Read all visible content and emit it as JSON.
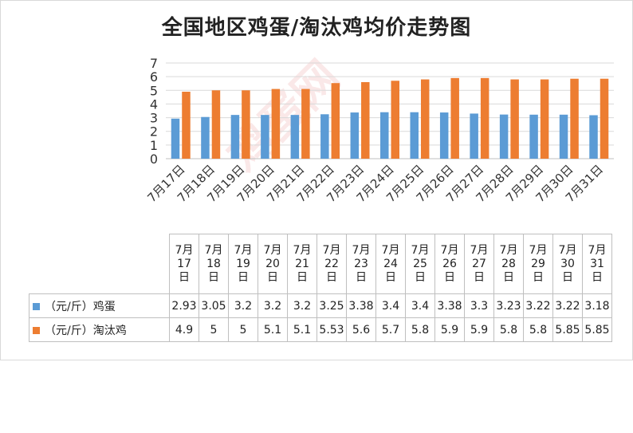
{
  "chart_data": {
    "type": "bar",
    "title": "全国地区鸡蛋/淘汰鸡均价走势图",
    "categories": [
      "7月17日",
      "7月18日",
      "7月19日",
      "7月20日",
      "7月21日",
      "7月22日",
      "7月23日",
      "7月24日",
      "7月25日",
      "7月26日",
      "7月27日",
      "7月28日",
      "7月29日",
      "7月30日",
      "7月31日"
    ],
    "table_headers": [
      [
        "7月",
        "17",
        "日"
      ],
      [
        "7月",
        "18",
        "日"
      ],
      [
        "7月",
        "19",
        "日"
      ],
      [
        "7月",
        "20",
        "日"
      ],
      [
        "7月",
        "21",
        "日"
      ],
      [
        "7月",
        "22",
        "日"
      ],
      [
        "7月",
        "23",
        "日"
      ],
      [
        "7月",
        "24",
        "日"
      ],
      [
        "7月",
        "25",
        "日"
      ],
      [
        "7月",
        "26",
        "日"
      ],
      [
        "7月",
        "27",
        "日"
      ],
      [
        "7月",
        "28",
        "日"
      ],
      [
        "7月",
        "29",
        "日"
      ],
      [
        "7月",
        "30",
        "日"
      ],
      [
        "7月",
        "31",
        "日"
      ]
    ],
    "series": [
      {
        "name": "（元/斤）鸡蛋",
        "color": "#5b9bd5",
        "values": [
          2.93,
          3.05,
          3.2,
          3.2,
          3.2,
          3.25,
          3.38,
          3.4,
          3.4,
          3.38,
          3.3,
          3.23,
          3.22,
          3.22,
          3.18
        ]
      },
      {
        "name": "（元/斤）淘汰鸡",
        "color": "#ed7d31",
        "values": [
          4.9,
          5,
          5,
          5.1,
          5.1,
          5.53,
          5.6,
          5.7,
          5.8,
          5.9,
          5.9,
          5.8,
          5.8,
          5.85,
          5.85
        ]
      }
    ],
    "ylim": [
      0,
      7
    ],
    "yticks": [
      "0",
      "1",
      "2",
      "3",
      "4",
      "5",
      "6",
      "7"
    ],
    "grid": true,
    "legend": "data-table"
  },
  "watermark": "鸡蛋网"
}
